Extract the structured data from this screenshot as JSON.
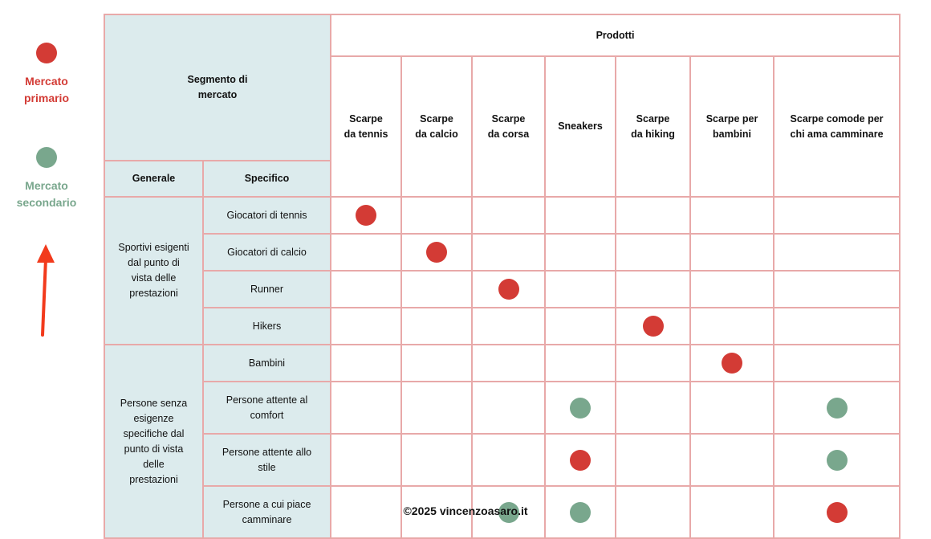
{
  "colors": {
    "primary": "#d33b35",
    "secondary": "#79a78d",
    "grid_border": "#e8a9a9",
    "header_fill": "#dcebed",
    "arrow": "#f23a1c"
  },
  "legend": {
    "primary_label": [
      "Mercato",
      "primario"
    ],
    "secondary_label": [
      "Mercato",
      "secondario"
    ]
  },
  "header": {
    "title": [
      "Segmento di",
      "mercato"
    ],
    "products_title": "Prodotti",
    "general": "Generale",
    "specific": "Specifico"
  },
  "products": [
    [
      "Scarpe",
      "da tennis"
    ],
    [
      "Scarpe",
      "da calcio"
    ],
    [
      "Scarpe",
      "da corsa"
    ],
    [
      "Sneakers"
    ],
    [
      "Scarpe",
      "da hiking"
    ],
    [
      "Scarpe per",
      "bambini"
    ],
    [
      "Scarpe comode per",
      "chi ama camminare"
    ]
  ],
  "groups": [
    {
      "label": [
        "Sportivi esigenti",
        "dal punto di",
        "vista delle",
        "prestazioni"
      ],
      "rows": 4
    },
    {
      "label": [
        "Persone senza",
        "esigenze",
        "specifiche dal",
        "punto di vista",
        "delle",
        "prestazioni"
      ],
      "rows": 4
    }
  ],
  "segments": [
    {
      "label": [
        "Giocatori di tennis"
      ],
      "marks": [
        "primary",
        "",
        "",
        "",
        "",
        "",
        ""
      ]
    },
    {
      "label": [
        "Giocatori di calcio"
      ],
      "marks": [
        "",
        "primary",
        "",
        "",
        "",
        "",
        ""
      ]
    },
    {
      "label": [
        "Runner"
      ],
      "marks": [
        "",
        "",
        "primary",
        "",
        "",
        "",
        ""
      ]
    },
    {
      "label": [
        "Hikers"
      ],
      "marks": [
        "",
        "",
        "",
        "",
        "primary",
        "",
        ""
      ]
    },
    {
      "label": [
        "Bambini"
      ],
      "marks": [
        "",
        "",
        "",
        "",
        "",
        "primary",
        ""
      ]
    },
    {
      "label": [
        "Persone attente al",
        "comfort"
      ],
      "marks": [
        "",
        "",
        "",
        "secondary",
        "",
        "",
        "secondary"
      ]
    },
    {
      "label": [
        "Persone attente allo",
        "stile"
      ],
      "marks": [
        "",
        "",
        "",
        "primary",
        "",
        "",
        "secondary"
      ]
    },
    {
      "label": [
        "Persone a cui piace",
        "camminare"
      ],
      "marks": [
        "",
        "",
        "secondary",
        "secondary",
        "",
        "",
        "primary"
      ]
    }
  ],
  "footer": "©2025 vincenzoasaro.it"
}
